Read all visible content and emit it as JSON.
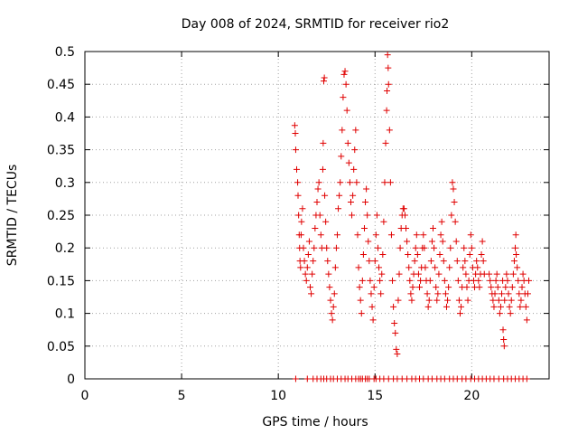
{
  "chart_data": {
    "type": "scatter",
    "title": "Day 008 of 2024, SRMTID for receiver rio2",
    "xlabel": "GPS time / hours",
    "ylabel": "SRMTID / TECUs",
    "xlim": [
      0,
      24
    ],
    "ylim": [
      0,
      0.5
    ],
    "grid": true,
    "marker": "+",
    "color": "#e00000",
    "xticks": [
      {
        "value": 0,
        "label": "0"
      },
      {
        "value": 5,
        "label": "5"
      },
      {
        "value": 10,
        "label": "10"
      },
      {
        "value": 15,
        "label": "15"
      },
      {
        "value": 20,
        "label": "20"
      }
    ],
    "yticks": [
      {
        "value": 0,
        "label": "0"
      },
      {
        "value": 0.05,
        "label": "0.05"
      },
      {
        "value": 0.1,
        "label": "0.1"
      },
      {
        "value": 0.15,
        "label": "0.15"
      },
      {
        "value": 0.2,
        "label": "0.2"
      },
      {
        "value": 0.25,
        "label": "0.25"
      },
      {
        "value": 0.3,
        "label": "0.3"
      },
      {
        "value": 0.35,
        "label": "0.35"
      },
      {
        "value": 0.4,
        "label": "0.4"
      },
      {
        "value": 0.45,
        "label": "0.45"
      },
      {
        "value": 0.5,
        "label": "0.5"
      }
    ],
    "series": [
      {
        "name": "SRMTID rio2",
        "points": [
          [
            10.85,
            0.387
          ],
          [
            10.88,
            0.375
          ],
          [
            10.9,
            0.35
          ],
          [
            10.95,
            0.32
          ],
          [
            11.0,
            0.3
          ],
          [
            11.02,
            0.28
          ],
          [
            11.05,
            0.25
          ],
          [
            11.08,
            0.22
          ],
          [
            11.1,
            0.2
          ],
          [
            11.12,
            0.18
          ],
          [
            11.15,
            0.17
          ],
          [
            11.18,
            0.22
          ],
          [
            11.2,
            0.24
          ],
          [
            11.25,
            0.26
          ],
          [
            11.3,
            0.2
          ],
          [
            11.35,
            0.18
          ],
          [
            11.4,
            0.16
          ],
          [
            11.45,
            0.15
          ],
          [
            11.5,
            0.17
          ],
          [
            11.55,
            0.19
          ],
          [
            11.6,
            0.21
          ],
          [
            11.65,
            0.14
          ],
          [
            11.7,
            0.13
          ],
          [
            11.75,
            0.16
          ],
          [
            11.8,
            0.18
          ],
          [
            11.85,
            0.2
          ],
          [
            11.9,
            0.23
          ],
          [
            11.95,
            0.25
          ],
          [
            12.0,
            0.27
          ],
          [
            12.05,
            0.29
          ],
          [
            12.1,
            0.3
          ],
          [
            12.15,
            0.25
          ],
          [
            12.2,
            0.22
          ],
          [
            12.25,
            0.2
          ],
          [
            12.3,
            0.32
          ],
          [
            12.32,
            0.36
          ],
          [
            12.35,
            0.455
          ],
          [
            12.38,
            0.46
          ],
          [
            12.4,
            0.28
          ],
          [
            12.45,
            0.24
          ],
          [
            12.5,
            0.2
          ],
          [
            12.55,
            0.18
          ],
          [
            12.6,
            0.16
          ],
          [
            12.65,
            0.14
          ],
          [
            12.7,
            0.12
          ],
          [
            12.75,
            0.1
          ],
          [
            12.8,
            0.09
          ],
          [
            12.85,
            0.11
          ],
          [
            12.9,
            0.13
          ],
          [
            12.95,
            0.17
          ],
          [
            13.0,
            0.2
          ],
          [
            13.05,
            0.22
          ],
          [
            13.1,
            0.26
          ],
          [
            13.15,
            0.28
          ],
          [
            13.2,
            0.3
          ],
          [
            13.25,
            0.34
          ],
          [
            13.3,
            0.38
          ],
          [
            13.35,
            0.43
          ],
          [
            13.4,
            0.465
          ],
          [
            13.45,
            0.47
          ],
          [
            13.5,
            0.45
          ],
          [
            13.55,
            0.41
          ],
          [
            13.6,
            0.36
          ],
          [
            13.65,
            0.33
          ],
          [
            13.7,
            0.3
          ],
          [
            13.75,
            0.27
          ],
          [
            13.8,
            0.25
          ],
          [
            13.85,
            0.28
          ],
          [
            13.9,
            0.32
          ],
          [
            13.95,
            0.35
          ],
          [
            14.0,
            0.38
          ],
          [
            14.05,
            0.3
          ],
          [
            14.1,
            0.22
          ],
          [
            14.15,
            0.17
          ],
          [
            14.2,
            0.14
          ],
          [
            14.25,
            0.12
          ],
          [
            14.3,
            0.1
          ],
          [
            14.35,
            0.15
          ],
          [
            14.4,
            0.19
          ],
          [
            14.45,
            0.23
          ],
          [
            14.5,
            0.27
          ],
          [
            14.55,
            0.29
          ],
          [
            14.6,
            0.25
          ],
          [
            14.65,
            0.21
          ],
          [
            14.7,
            0.18
          ],
          [
            14.75,
            0.15
          ],
          [
            14.8,
            0.13
          ],
          [
            14.85,
            0.11
          ],
          [
            14.9,
            0.09
          ],
          [
            14.95,
            0.14
          ],
          [
            15.0,
            0.18
          ],
          [
            15.05,
            0.22
          ],
          [
            15.1,
            0.25
          ],
          [
            15.15,
            0.2
          ],
          [
            15.2,
            0.17
          ],
          [
            15.25,
            0.15
          ],
          [
            15.3,
            0.13
          ],
          [
            15.35,
            0.16
          ],
          [
            15.4,
            0.19
          ],
          [
            15.45,
            0.24
          ],
          [
            15.5,
            0.3
          ],
          [
            15.55,
            0.36
          ],
          [
            15.6,
            0.41
          ],
          [
            15.62,
            0.44
          ],
          [
            15.65,
            0.495
          ],
          [
            15.68,
            0.475
          ],
          [
            15.7,
            0.45
          ],
          [
            15.75,
            0.38
          ],
          [
            15.8,
            0.3
          ],
          [
            15.85,
            0.22
          ],
          [
            15.9,
            0.15
          ],
          [
            15.95,
            0.11
          ],
          [
            16.0,
            0.085
          ],
          [
            16.05,
            0.07
          ],
          [
            16.1,
            0.045
          ],
          [
            16.15,
            0.038
          ],
          [
            16.2,
            0.12
          ],
          [
            16.25,
            0.16
          ],
          [
            16.3,
            0.2
          ],
          [
            16.35,
            0.23
          ],
          [
            16.4,
            0.25
          ],
          [
            16.45,
            0.26
          ],
          [
            16.5,
            0.26
          ],
          [
            16.55,
            0.25
          ],
          [
            16.6,
            0.23
          ],
          [
            16.65,
            0.21
          ],
          [
            16.7,
            0.19
          ],
          [
            16.75,
            0.17
          ],
          [
            16.8,
            0.15
          ],
          [
            16.85,
            0.13
          ],
          [
            16.9,
            0.12
          ],
          [
            16.95,
            0.14
          ],
          [
            17.0,
            0.16
          ],
          [
            17.05,
            0.18
          ],
          [
            17.1,
            0.2
          ],
          [
            17.15,
            0.22
          ],
          [
            17.2,
            0.19
          ],
          [
            17.25,
            0.16
          ],
          [
            17.3,
            0.14
          ],
          [
            17.35,
            0.15
          ],
          [
            17.4,
            0.17
          ],
          [
            17.45,
            0.2
          ],
          [
            17.5,
            0.22
          ],
          [
            17.55,
            0.2
          ],
          [
            17.6,
            0.17
          ],
          [
            17.65,
            0.15
          ],
          [
            17.7,
            0.13
          ],
          [
            17.75,
            0.11
          ],
          [
            17.8,
            0.12
          ],
          [
            17.85,
            0.15
          ],
          [
            17.9,
            0.18
          ],
          [
            17.95,
            0.21
          ],
          [
            18.0,
            0.23
          ],
          [
            18.05,
            0.2
          ],
          [
            18.1,
            0.17
          ],
          [
            18.15,
            0.14
          ],
          [
            18.2,
            0.12
          ],
          [
            18.25,
            0.13
          ],
          [
            18.3,
            0.16
          ],
          [
            18.35,
            0.19
          ],
          [
            18.4,
            0.22
          ],
          [
            18.45,
            0.24
          ],
          [
            18.5,
            0.21
          ],
          [
            18.55,
            0.18
          ],
          [
            18.6,
            0.15
          ],
          [
            18.65,
            0.13
          ],
          [
            18.7,
            0.11
          ],
          [
            18.75,
            0.12
          ],
          [
            18.8,
            0.14
          ],
          [
            18.85,
            0.17
          ],
          [
            18.9,
            0.2
          ],
          [
            18.95,
            0.25
          ],
          [
            19.0,
            0.3
          ],
          [
            19.05,
            0.29
          ],
          [
            19.1,
            0.27
          ],
          [
            19.15,
            0.24
          ],
          [
            19.2,
            0.21
          ],
          [
            19.25,
            0.18
          ],
          [
            19.3,
            0.15
          ],
          [
            19.35,
            0.12
          ],
          [
            19.4,
            0.1
          ],
          [
            19.45,
            0.11
          ],
          [
            19.5,
            0.14
          ],
          [
            19.55,
            0.17
          ],
          [
            19.6,
            0.2
          ],
          [
            19.65,
            0.18
          ],
          [
            19.7,
            0.16
          ],
          [
            19.75,
            0.14
          ],
          [
            19.8,
            0.12
          ],
          [
            19.85,
            0.15
          ],
          [
            19.9,
            0.19
          ],
          [
            19.95,
            0.22
          ],
          [
            20.0,
            0.2
          ],
          [
            20.05,
            0.17
          ],
          [
            20.1,
            0.15
          ],
          [
            20.15,
            0.14
          ],
          [
            20.2,
            0.16
          ],
          [
            20.25,
            0.18
          ],
          [
            20.3,
            0.17
          ],
          [
            20.35,
            0.15
          ],
          [
            20.4,
            0.14
          ],
          [
            20.45,
            0.16
          ],
          [
            20.5,
            0.19
          ],
          [
            20.55,
            0.21
          ],
          [
            20.6,
            0.18
          ],
          [
            20.65,
            0.16
          ],
          [
            20.9,
            0.16
          ],
          [
            20.95,
            0.15
          ],
          [
            21.0,
            0.14
          ],
          [
            21.05,
            0.13
          ],
          [
            21.1,
            0.12
          ],
          [
            21.15,
            0.11
          ],
          [
            21.2,
            0.13
          ],
          [
            21.25,
            0.15
          ],
          [
            21.3,
            0.16
          ],
          [
            21.35,
            0.14
          ],
          [
            21.4,
            0.12
          ],
          [
            21.45,
            0.1
          ],
          [
            21.5,
            0.11
          ],
          [
            21.55,
            0.13
          ],
          [
            21.6,
            0.15
          ],
          [
            21.62,
            0.075
          ],
          [
            21.65,
            0.06
          ],
          [
            21.68,
            0.05
          ],
          [
            21.7,
            0.12
          ],
          [
            21.75,
            0.14
          ],
          [
            21.8,
            0.16
          ],
          [
            21.85,
            0.15
          ],
          [
            21.9,
            0.13
          ],
          [
            21.95,
            0.11
          ],
          [
            22.0,
            0.1
          ],
          [
            22.05,
            0.12
          ],
          [
            22.1,
            0.14
          ],
          [
            22.15,
            0.16
          ],
          [
            22.2,
            0.18
          ],
          [
            22.25,
            0.2
          ],
          [
            22.28,
            0.22
          ],
          [
            22.3,
            0.19
          ],
          [
            22.35,
            0.17
          ],
          [
            22.4,
            0.15
          ],
          [
            22.45,
            0.13
          ],
          [
            22.5,
            0.11
          ],
          [
            22.55,
            0.12
          ],
          [
            22.6,
            0.14
          ],
          [
            22.65,
            0.16
          ],
          [
            22.7,
            0.15
          ],
          [
            22.75,
            0.13
          ],
          [
            22.8,
            0.11
          ],
          [
            22.85,
            0.09
          ],
          [
            22.9,
            0.13
          ],
          [
            22.95,
            0.15
          ]
        ],
        "zero_times": [
          10.9,
          11.5,
          11.8,
          12.0,
          12.2,
          12.35,
          12.5,
          12.7,
          12.85,
          13.05,
          13.25,
          13.45,
          13.6,
          13.8,
          14.0,
          14.15,
          14.25,
          14.35,
          14.5,
          14.6,
          14.7,
          14.95,
          15.05,
          15.25,
          15.45,
          15.7,
          15.95,
          16.15,
          16.4,
          16.65,
          16.9,
          17.1,
          17.3,
          17.5,
          17.75,
          17.95,
          18.2,
          18.4,
          18.6,
          18.85,
          19.05,
          19.25,
          19.5,
          19.7,
          19.95,
          20.15,
          20.35,
          20.55,
          20.75,
          20.95,
          21.15,
          21.4,
          21.65,
          21.85,
          22.05,
          22.25,
          22.45,
          22.65,
          22.85
        ]
      }
    ]
  }
}
